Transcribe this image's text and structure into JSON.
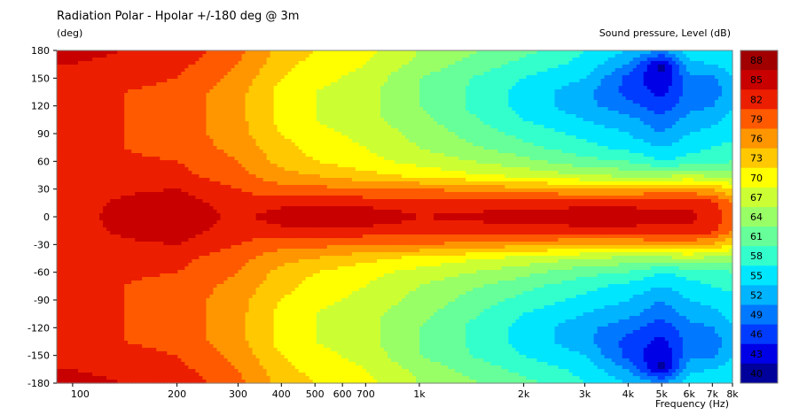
{
  "chart_data": {
    "type": "heatmap",
    "title": "Radiation Polar - Hpolar +/-180 deg @ 3m",
    "ylabel": "(deg)",
    "xlabel": "Frequency  (Hz)",
    "colorbar_label": "Sound pressure, Level  (dB)",
    "x_scale": "log",
    "xlim": [
      90,
      8000
    ],
    "ylim": [
      -180,
      180
    ],
    "x_ticks": [
      {
        "value": 100,
        "label": "100"
      },
      {
        "value": 200,
        "label": "200"
      },
      {
        "value": 300,
        "label": "300"
      },
      {
        "value": 400,
        "label": "400"
      },
      {
        "value": 500,
        "label": "500"
      },
      {
        "value": 600,
        "label": "600"
      },
      {
        "value": 700,
        "label": "700"
      },
      {
        "value": 1000,
        "label": "1k"
      },
      {
        "value": 2000,
        "label": "2k"
      },
      {
        "value": 3000,
        "label": "3k"
      },
      {
        "value": 4000,
        "label": "4k"
      },
      {
        "value": 5000,
        "label": "5k"
      },
      {
        "value": 6000,
        "label": "6k"
      },
      {
        "value": 7000,
        "label": "7k"
      },
      {
        "value": 8000,
        "label": "8k"
      }
    ],
    "y_ticks": [
      180,
      150,
      120,
      90,
      60,
      30,
      0,
      -30,
      -60,
      -90,
      -120,
      -150,
      -180
    ],
    "colorbar_levels": [
      {
        "label": "88",
        "color": "#a00000"
      },
      {
        "label": "85",
        "color": "#c80000"
      },
      {
        "label": "82",
        "color": "#ec1e00"
      },
      {
        "label": "79",
        "color": "#ff5a00"
      },
      {
        "label": "76",
        "color": "#ff9600"
      },
      {
        "label": "73",
        "color": "#ffc800"
      },
      {
        "label": "70",
        "color": "#ffff00"
      },
      {
        "label": "67",
        "color": "#ccff33"
      },
      {
        "label": "64",
        "color": "#99ff66"
      },
      {
        "label": "61",
        "color": "#66ff99"
      },
      {
        "label": "58",
        "color": "#33ffcc"
      },
      {
        "label": "55",
        "color": "#00e6ff"
      },
      {
        "label": "52",
        "color": "#00b4ff"
      },
      {
        "label": "49",
        "color": "#0078ff"
      },
      {
        "label": "46",
        "color": "#003cff"
      },
      {
        "label": "43",
        "color": "#0000e6"
      },
      {
        "label": "40",
        "color": "#00009a"
      }
    ],
    "series": [
      {
        "angles": [
          0,
          15,
          30,
          45,
          60,
          75,
          90,
          105,
          120,
          135,
          150,
          165,
          180
        ],
        "freqs_hz": [
          100,
          200,
          300,
          400,
          500,
          700,
          1000,
          2000,
          3000,
          4000,
          5000,
          6000,
          7000,
          8000
        ]
      }
    ],
    "levels_db": [
      [
        84,
        88,
        84,
        87,
        87,
        87,
        85,
        86,
        87,
        87,
        86,
        86,
        84,
        80
      ],
      [
        84,
        87,
        83,
        84,
        84,
        84,
        84,
        84,
        84,
        84,
        84,
        84,
        83,
        79
      ],
      [
        84,
        85,
        82,
        80,
        80,
        79,
        79,
        77,
        76,
        76,
        77,
        77,
        76,
        73
      ],
      [
        83,
        83,
        80,
        77,
        76,
        74,
        72,
        69,
        67,
        66,
        66,
        67,
        66,
        65
      ],
      [
        83,
        82,
        79,
        75,
        73,
        71,
        69,
        65,
        62,
        61,
        58,
        59,
        60,
        61
      ],
      [
        83,
        81,
        78,
        74,
        72,
        70,
        67,
        62,
        59,
        57,
        55,
        57,
        58,
        59
      ],
      [
        83,
        81,
        77,
        73,
        71,
        69,
        66,
        60,
        57,
        55,
        52,
        55,
        56,
        57
      ],
      [
        83,
        81,
        77,
        72,
        70,
        68,
        65,
        58,
        55,
        53,
        50,
        53,
        54,
        56
      ],
      [
        83,
        81,
        77,
        72,
        70,
        68,
        64,
        57,
        53,
        50,
        47,
        51,
        52,
        55
      ],
      [
        83,
        81,
        77,
        72,
        70,
        68,
        64,
        57,
        53,
        48,
        45,
        50,
        50,
        54
      ],
      [
        84,
        82,
        78,
        73,
        71,
        69,
        64,
        58,
        55,
        48,
        43,
        51,
        51,
        55
      ],
      [
        85,
        83,
        79,
        74,
        72,
        70,
        66,
        60,
        57,
        52,
        42,
        54,
        55,
        57
      ],
      [
        86,
        84,
        80,
        75,
        73,
        71,
        67,
        62,
        58,
        55,
        52,
        57,
        58,
        58
      ]
    ]
  }
}
